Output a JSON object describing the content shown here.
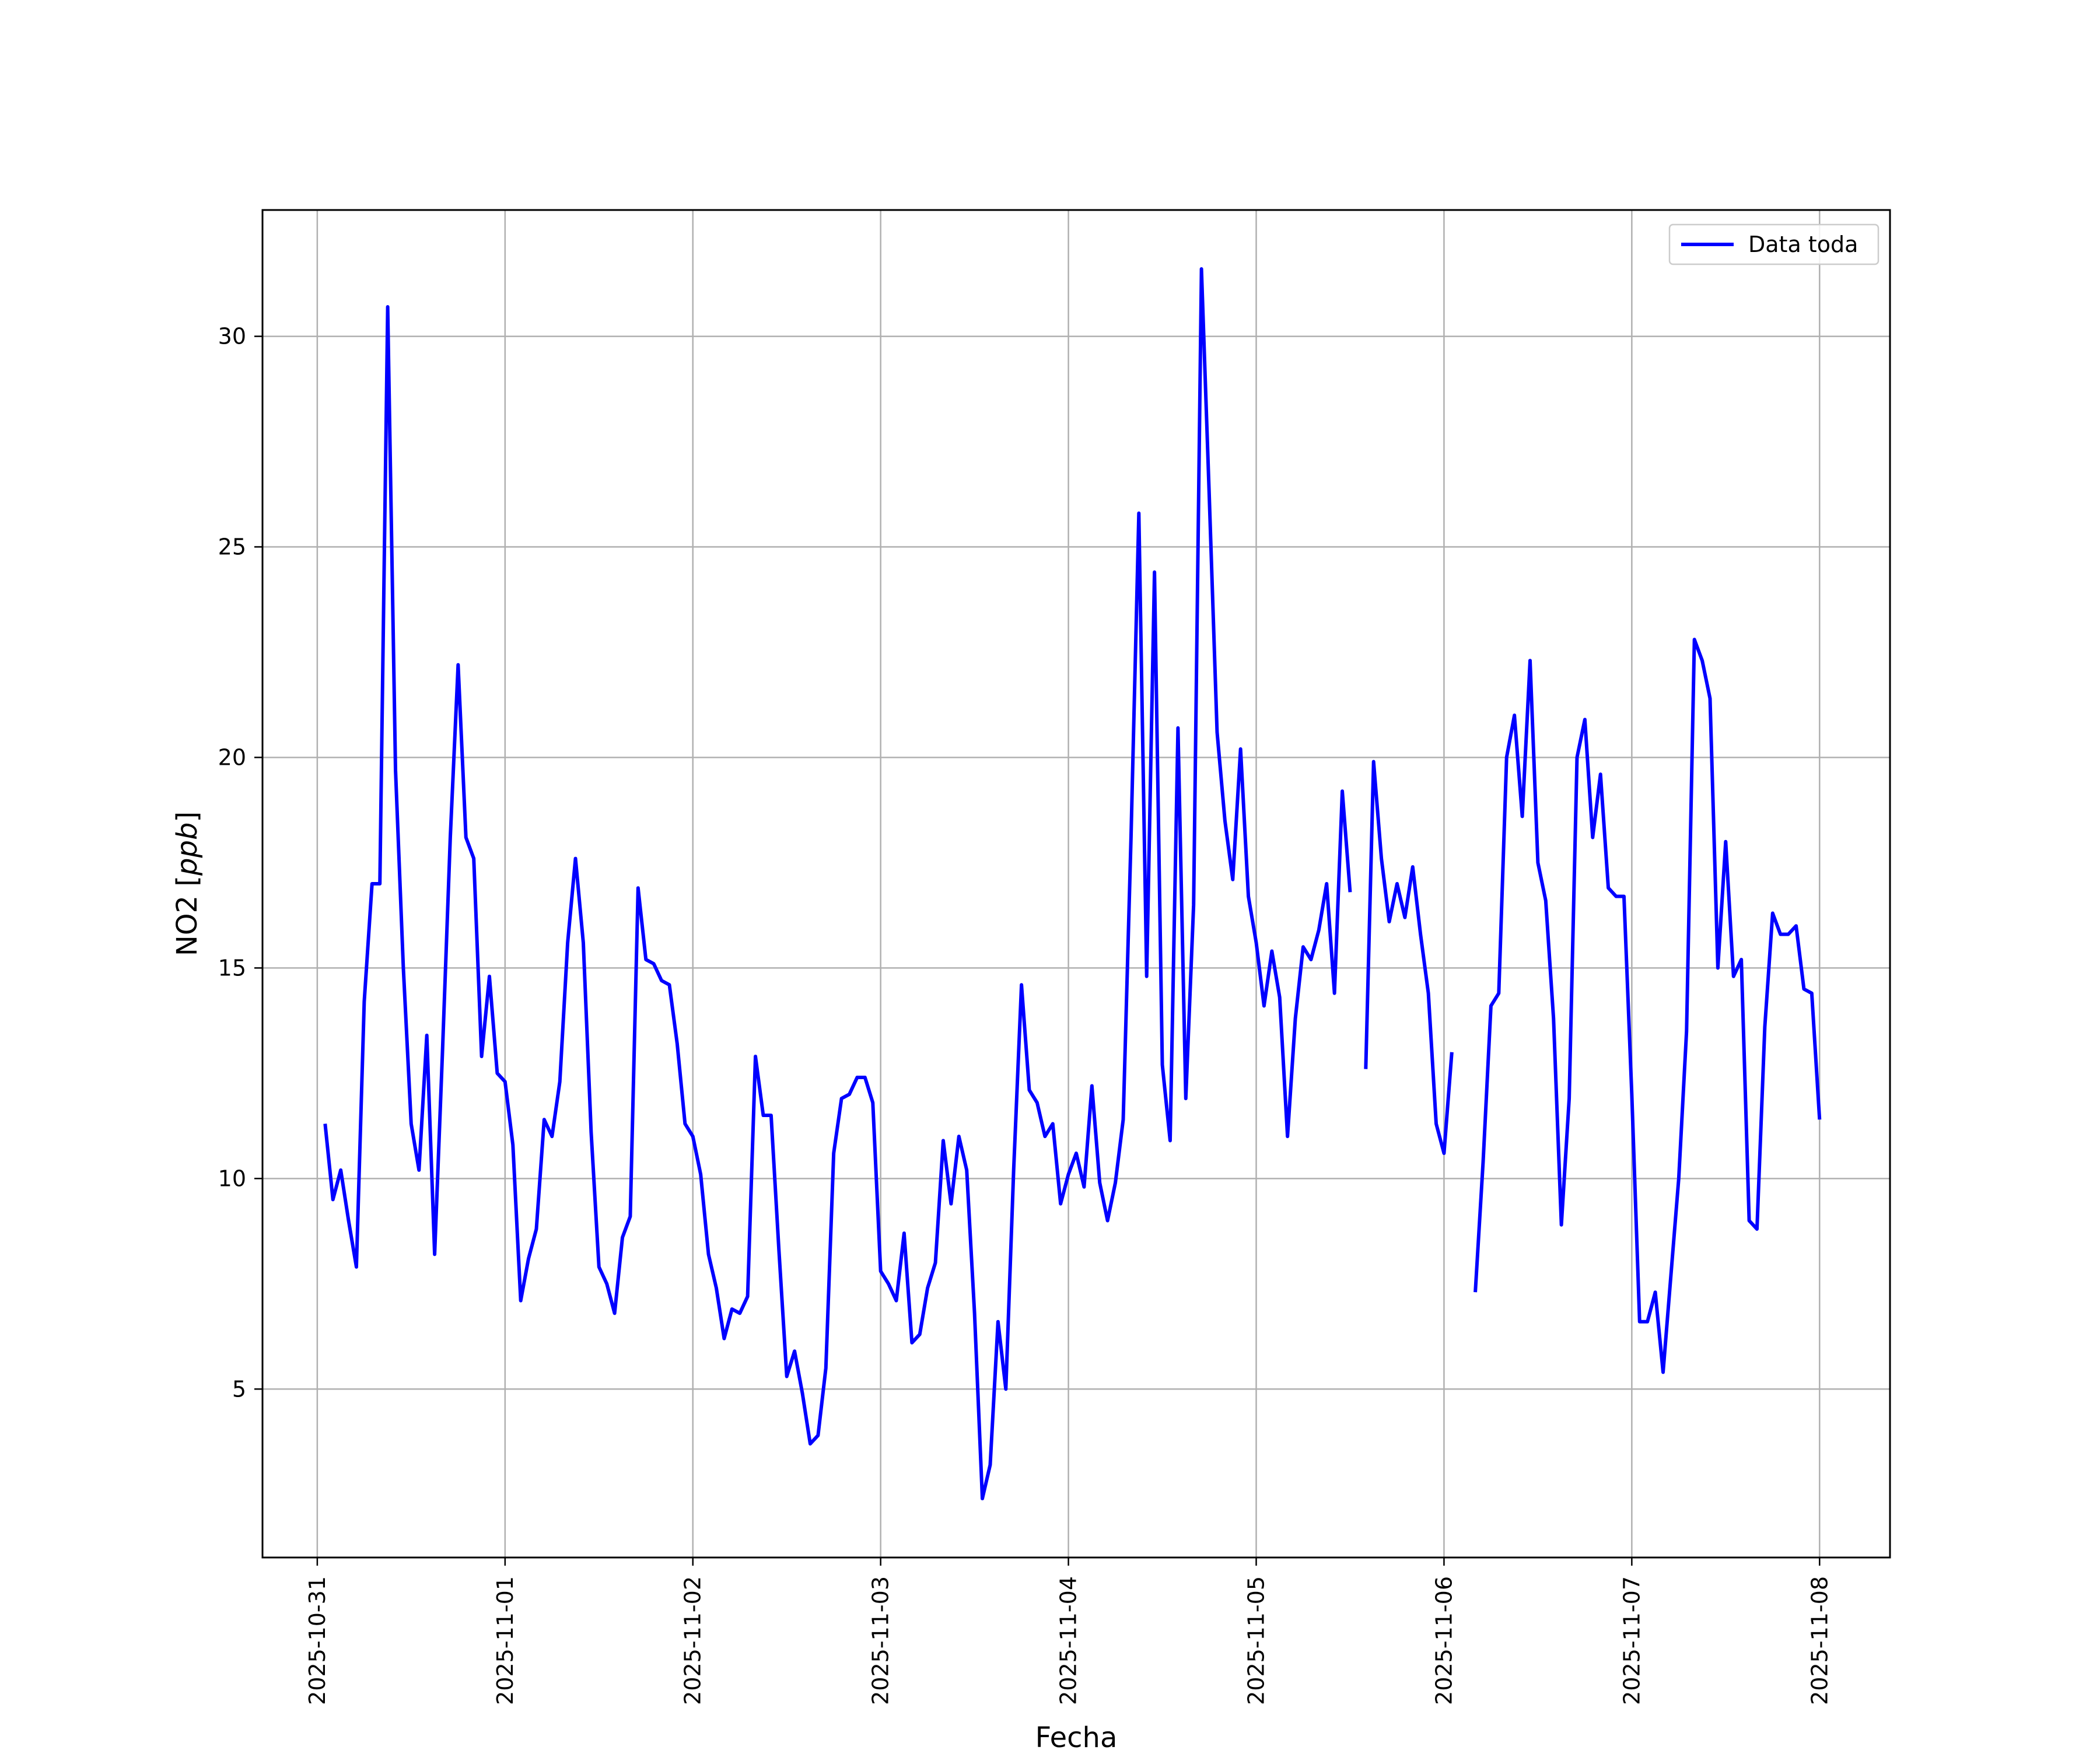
{
  "chart_data": {
    "type": "line",
    "title": "",
    "xlabel": "Fecha",
    "ylabel_main": "NO2 [",
    "ylabel_unit": "ppb",
    "ylabel_close": "]",
    "x_type": "date",
    "xlim": [
      "2025-10-30T17:00",
      "2025-11-08T09:00"
    ],
    "ylim": [
      1.0,
      33.0
    ],
    "x_ticks": [
      "2025-10-31",
      "2025-11-01",
      "2025-11-02",
      "2025-11-03",
      "2025-11-04",
      "2025-11-05",
      "2025-11-06",
      "2025-11-07",
      "2025-11-08"
    ],
    "y_ticks": [
      5,
      10,
      15,
      20,
      25,
      30
    ],
    "grid": true,
    "legend_position": "top-right",
    "series": [
      {
        "name": "Data toda",
        "color": "#0000ff",
        "start": "2025-10-31T01:00",
        "step_hours": 1,
        "values": [
          11.3,
          9.5,
          10.2,
          9.0,
          7.9,
          14.2,
          17.0,
          17.0,
          30.7,
          19.7,
          15.0,
          11.3,
          10.2,
          13.4,
          8.2,
          13.0,
          18.1,
          22.2,
          18.1,
          17.6,
          12.9,
          14.8,
          12.5,
          12.3,
          10.8,
          7.1,
          8.1,
          8.8,
          11.4,
          11.0,
          12.3,
          15.6,
          17.6,
          15.6,
          11.1,
          7.9,
          7.5,
          6.8,
          8.6,
          9.1,
          16.9,
          15.2,
          15.1,
          14.7,
          14.6,
          13.2,
          11.3,
          11.0,
          10.1,
          8.2,
          7.4,
          6.2,
          6.9,
          6.8,
          7.2,
          12.9,
          11.5,
          11.5,
          8.3,
          5.3,
          5.9,
          4.9,
          3.7,
          3.9,
          5.5,
          10.6,
          11.9,
          12.0,
          12.4,
          12.4,
          11.8,
          7.8,
          7.5,
          7.1,
          8.7,
          6.1,
          6.3,
          7.4,
          8.0,
          10.9,
          9.4,
          11.0,
          10.2,
          6.8,
          2.4,
          3.2,
          6.6,
          5.0,
          10.2,
          14.6,
          12.1,
          11.8,
          11.0,
          11.3,
          9.4,
          10.1,
          10.6,
          9.8,
          12.2,
          9.9,
          9.0,
          9.9,
          11.4,
          18.1,
          25.8,
          14.8,
          24.4,
          12.7,
          10.9,
          20.7,
          11.9,
          16.5,
          31.6,
          26.2,
          20.6,
          18.5,
          17.1,
          20.2,
          16.7,
          15.6,
          14.1,
          15.4,
          14.3,
          11.0,
          13.8,
          15.5,
          15.2,
          15.9,
          17.0,
          14.4,
          19.2,
          16.8,
          null,
          12.6,
          19.9,
          17.6,
          16.1,
          17.0,
          16.2,
          17.4,
          15.8,
          14.4,
          11.3,
          10.6,
          13.0,
          null,
          null,
          7.3,
          10.4,
          14.1,
          14.4,
          20.0,
          21.0,
          18.6,
          22.3,
          17.5,
          16.6,
          13.8,
          8.9,
          11.9,
          20.0,
          20.9,
          18.1,
          19.6,
          16.9,
          16.7,
          16.7,
          12.0,
          6.6,
          6.6,
          7.3,
          5.4,
          7.7,
          10.0,
          13.5,
          22.8,
          22.3,
          21.4,
          15.0,
          18.0,
          14.8,
          15.2,
          9.0,
          8.8,
          13.6,
          16.3,
          15.8,
          15.8,
          16.0,
          14.5,
          14.4,
          11.4
        ]
      }
    ]
  }
}
